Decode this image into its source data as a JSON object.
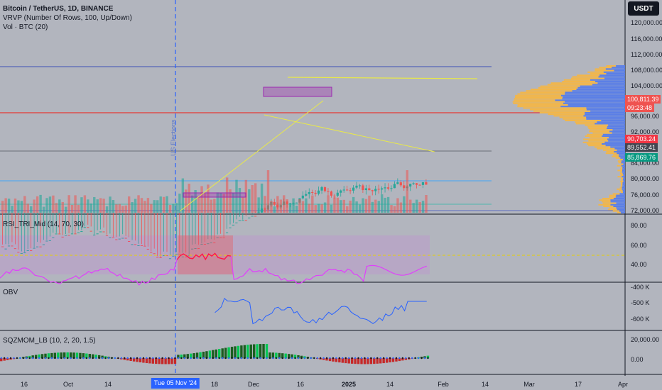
{
  "legend": {
    "symbol": "Bitcoin / TetherUS, 1D, BINANCE",
    "vrvp": "VRVP (Number Of Rows, 100, Up/Down)",
    "vol": "Vol · BTC (20)"
  },
  "currency": "USDT",
  "price_axis": [
    "120,000.00",
    "116,000.00",
    "112,000.00",
    "108,000.00",
    "104,000.00",
    "96,000.00",
    "92,000.00",
    "84,000.00",
    "80,000.00",
    "76,000.00",
    "72,000.00"
  ],
  "price_tags": {
    "last": "100,811.39",
    "countdown": "09:23:48",
    "red": "90,703.24",
    "gray": "89,552.41",
    "green": "85,869.76"
  },
  "panes": {
    "rsi": {
      "label": "RSI_TRI_Mid (14, 70, 30)",
      "ticks": [
        "80.00",
        "60.00",
        "40.00"
      ]
    },
    "obv": {
      "label": "OBV",
      "ticks": [
        "-400 K",
        "-500 K",
        "-600 K"
      ]
    },
    "sqz": {
      "label": "SQZMOM_LB (10, 2, 20, 1.5)",
      "ticks": [
        "20,000.00",
        "0.00"
      ]
    }
  },
  "event_label": "US Elections",
  "x_axis": [
    "16",
    "Oct",
    "14",
    "Nov",
    "18",
    "Dec",
    "16",
    "2025",
    "14",
    "Feb",
    "14",
    "Mar",
    "17",
    "Apr"
  ],
  "x_highlight": "Tue 05 Nov '24",
  "colors": {
    "up": "#26a69a",
    "down": "#ef5350",
    "rsi": "#e040fb",
    "obv": "#2962ff",
    "vp_up": "#5b7fe6",
    "vp_down": "#f2b64a",
    "trend": "#e8e84a"
  }
}
